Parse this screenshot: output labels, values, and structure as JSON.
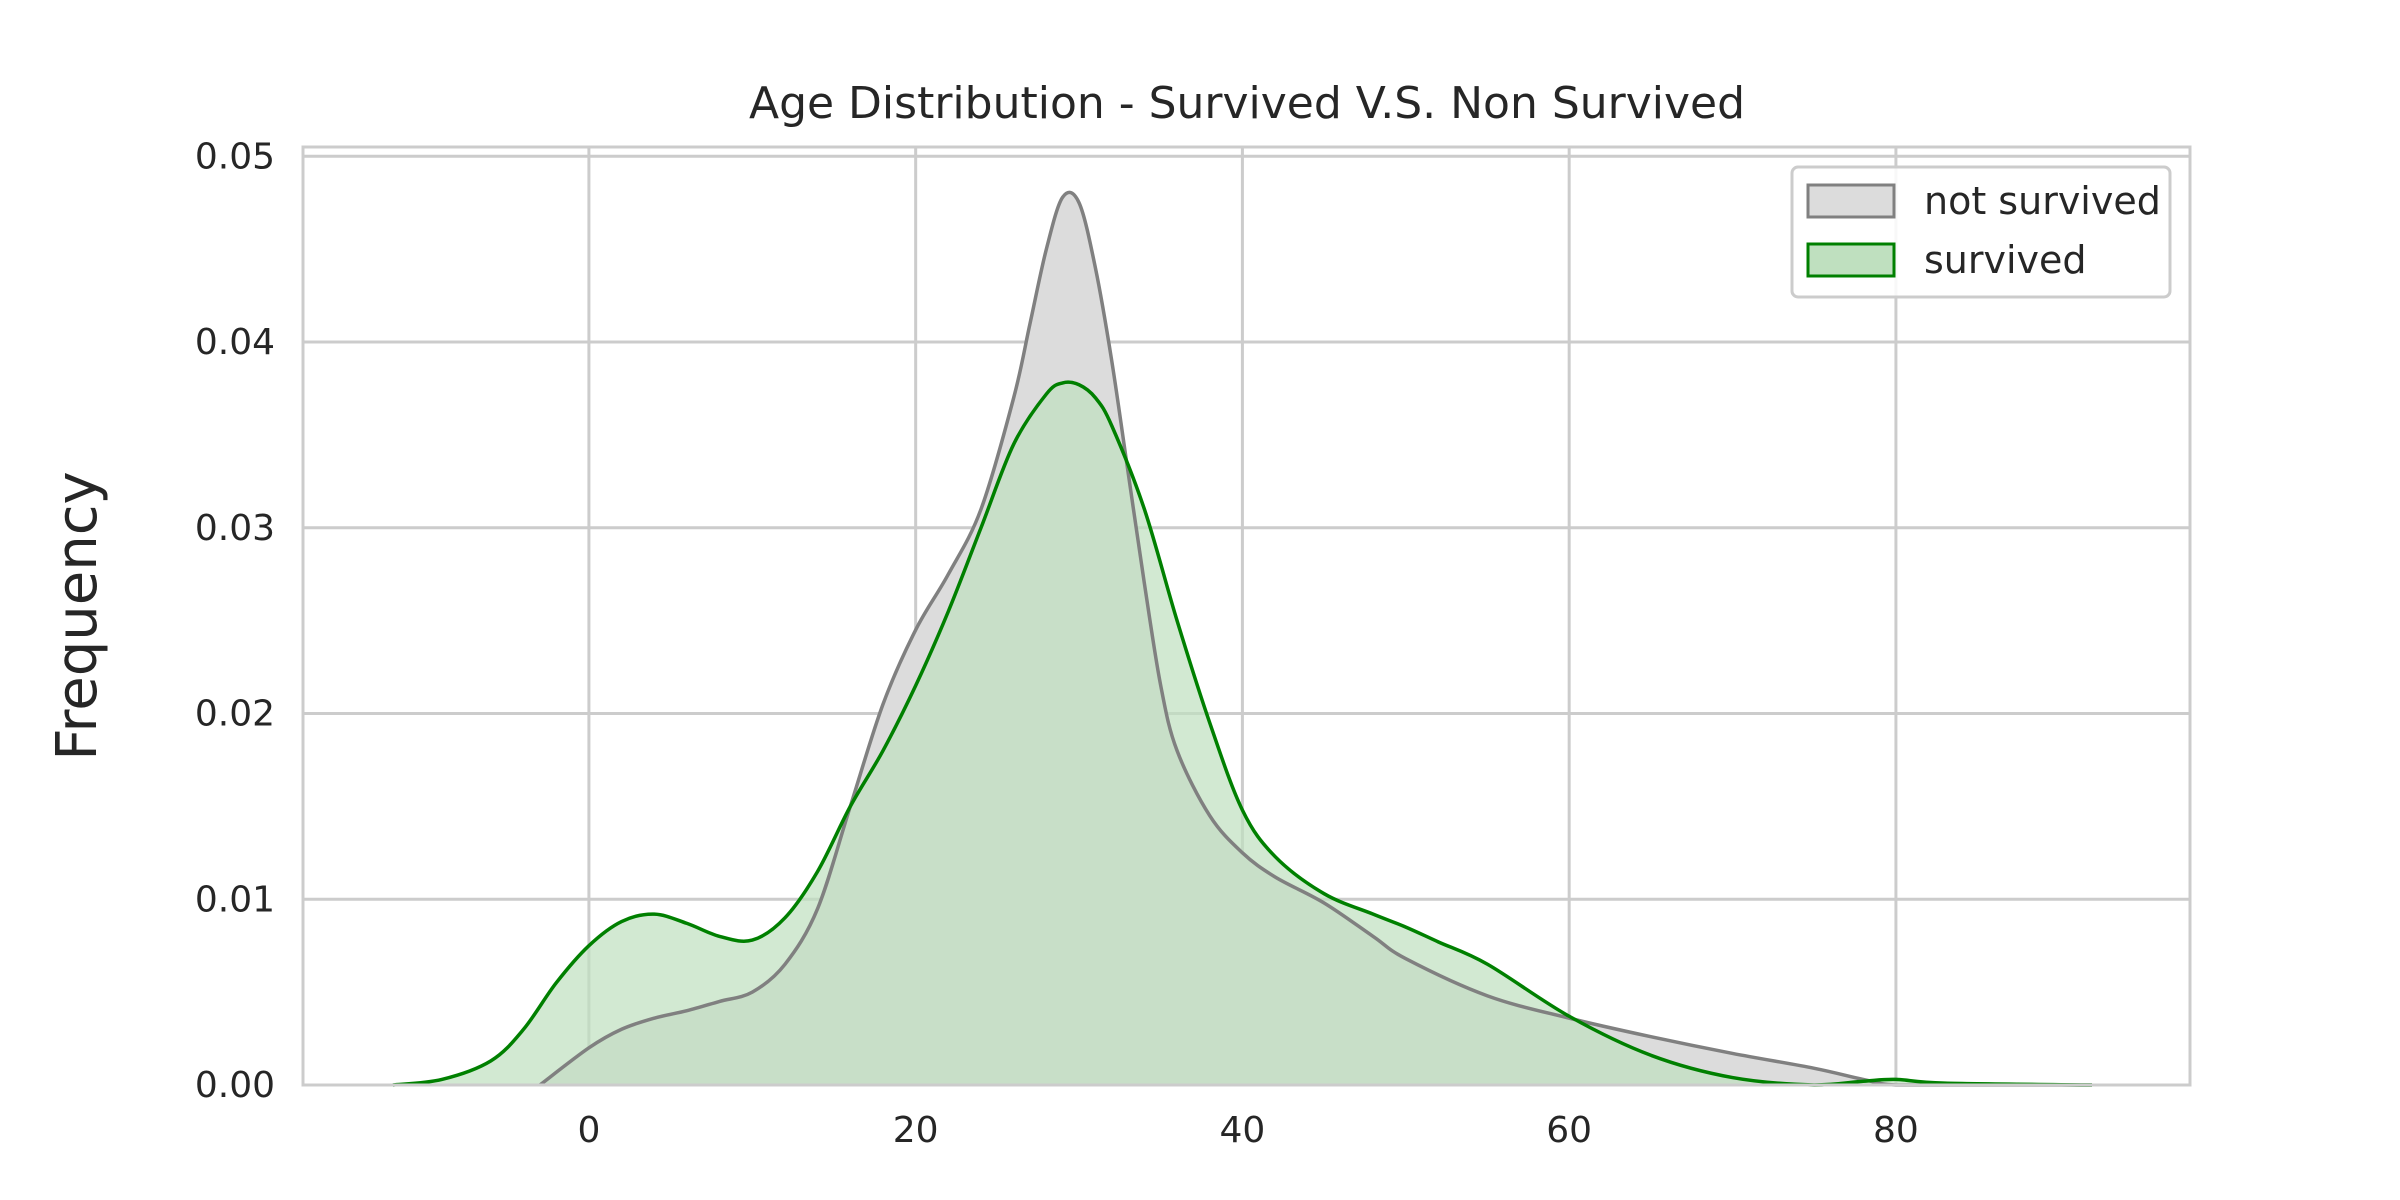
{
  "chart_data": {
    "type": "area",
    "title": "Age Distribution - Survived V.S. Non Survived",
    "xlabel": "",
    "ylabel": "Frequency",
    "xlim": [
      -17.5,
      98
    ],
    "ylim": [
      0,
      0.0505
    ],
    "x_ticks": [
      0,
      20,
      40,
      60,
      80
    ],
    "y_ticks": [
      0.0,
      0.01,
      0.02,
      0.03,
      0.04,
      0.05
    ],
    "x_tick_labels": [
      "0",
      "20",
      "40",
      "60",
      "80"
    ],
    "y_tick_labels": [
      "0.00",
      "0.01",
      "0.02",
      "0.03",
      "0.04",
      "0.05"
    ],
    "grid": true,
    "legend_position": "top-right",
    "series": [
      {
        "name": "not survived",
        "line_color": "#808080",
        "fill_color": "#dcdcdc",
        "x": [
          -3,
          0,
          2,
          4,
          6,
          8,
          10,
          12,
          14,
          16,
          18,
          20,
          22,
          24,
          26,
          27,
          28,
          29,
          30,
          31,
          32,
          33,
          34,
          35,
          36,
          38,
          40,
          42,
          45,
          48,
          50,
          55,
          60,
          65,
          70,
          75,
          78,
          80,
          85,
          92
        ],
        "y": [
          0.0,
          0.002,
          0.003,
          0.0036,
          0.004,
          0.0045,
          0.005,
          0.0065,
          0.0095,
          0.015,
          0.0205,
          0.0245,
          0.0275,
          0.031,
          0.037,
          0.041,
          0.045,
          0.0478,
          0.0475,
          0.044,
          0.039,
          0.033,
          0.027,
          0.0215,
          0.018,
          0.0145,
          0.0125,
          0.0112,
          0.0098,
          0.008,
          0.0068,
          0.0048,
          0.0036,
          0.0026,
          0.0017,
          0.0009,
          0.0003,
          0.0,
          0.0,
          0.0
        ]
      },
      {
        "name": "survived",
        "line_color": "#008000",
        "fill_color": "#bfe0bf",
        "x": [
          -12,
          -9,
          -6,
          -4,
          -2,
          0,
          2,
          4,
          6,
          8,
          10,
          12,
          14,
          16,
          18,
          20,
          22,
          24,
          26,
          28,
          29,
          30,
          31,
          32,
          34,
          36,
          38,
          40,
          42,
          45,
          48,
          50,
          52,
          55,
          60,
          65,
          70,
          75,
          78,
          80,
          83,
          92
        ],
        "y": [
          0.0,
          0.0003,
          0.0013,
          0.003,
          0.0055,
          0.0075,
          0.0088,
          0.0092,
          0.0087,
          0.008,
          0.0078,
          0.009,
          0.0115,
          0.015,
          0.018,
          0.0215,
          0.0255,
          0.03,
          0.0345,
          0.0372,
          0.0378,
          0.0377,
          0.037,
          0.0355,
          0.031,
          0.025,
          0.0195,
          0.0148,
          0.0123,
          0.0103,
          0.0092,
          0.0085,
          0.0077,
          0.0065,
          0.0037,
          0.0016,
          0.0004,
          0.0,
          0.0002,
          0.0003,
          0.0001,
          0.0
        ]
      }
    ]
  }
}
